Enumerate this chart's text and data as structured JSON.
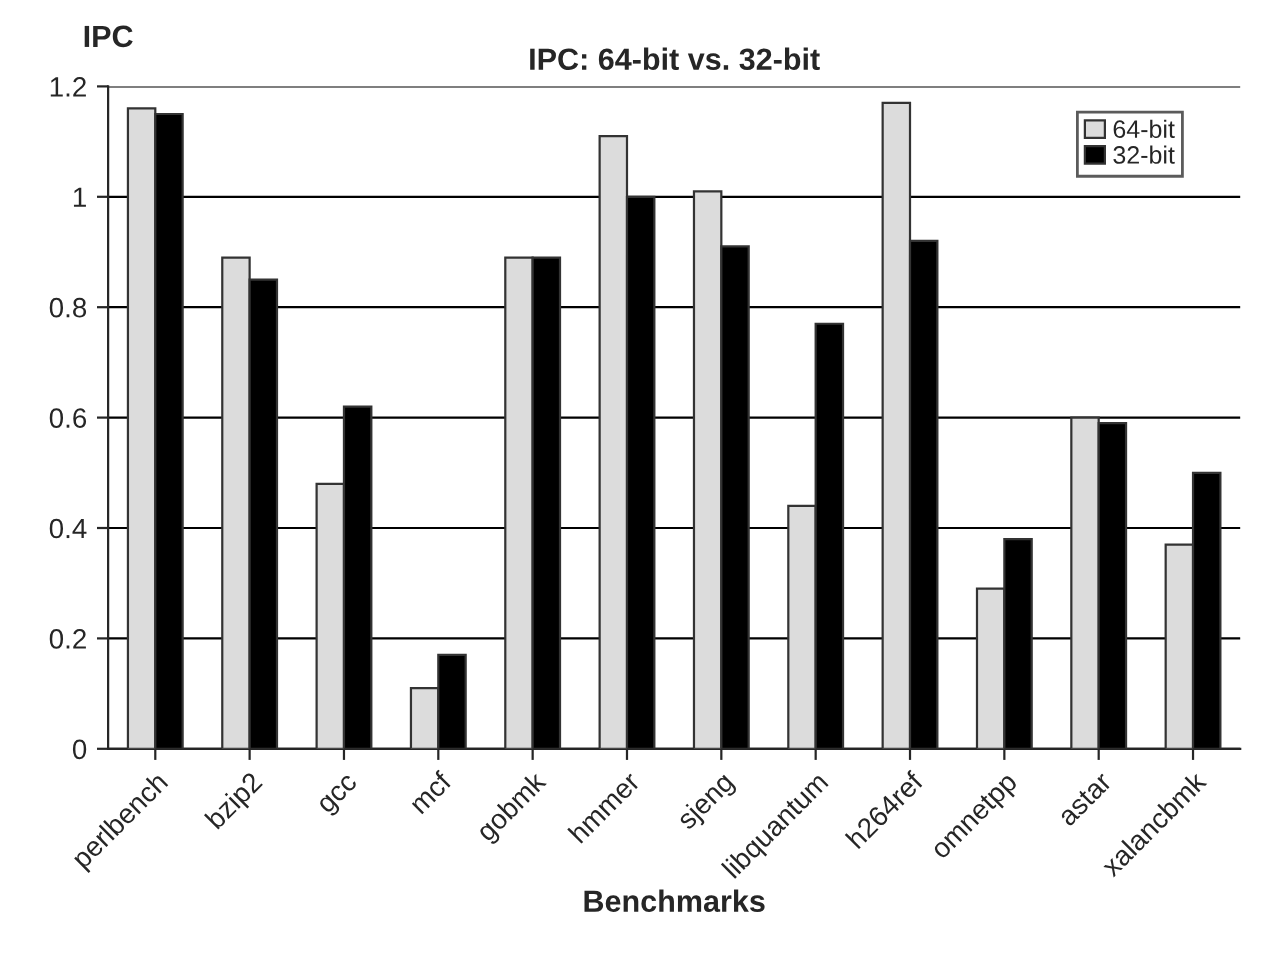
{
  "chart_data": {
    "type": "bar",
    "title": "IPC: 64-bit vs. 32-bit",
    "xlabel": "Benchmarks",
    "ylabel": "IPC",
    "categories": [
      "perlbench",
      "bzip2",
      "gcc",
      "mcf",
      "gobmk",
      "hmmer",
      "sjeng",
      "libquantum",
      "h264ref",
      "omnetpp",
      "astar",
      "xalancbmk"
    ],
    "series": [
      {
        "name": "64-bit",
        "color": "#dcdcdc",
        "values": [
          1.16,
          0.89,
          0.48,
          0.11,
          0.89,
          1.11,
          1.01,
          0.44,
          1.17,
          0.29,
          0.6,
          0.37
        ]
      },
      {
        "name": "32-bit",
        "color": "#000000",
        "values": [
          1.15,
          0.85,
          0.62,
          0.17,
          0.89,
          1.0,
          0.91,
          0.77,
          0.92,
          0.38,
          0.59,
          0.5
        ]
      }
    ],
    "ylim": [
      0,
      1.2
    ],
    "yticks": [
      0,
      0.2,
      0.4,
      0.6,
      0.8,
      1,
      1.2
    ],
    "grid": "y",
    "legend": "top right"
  }
}
